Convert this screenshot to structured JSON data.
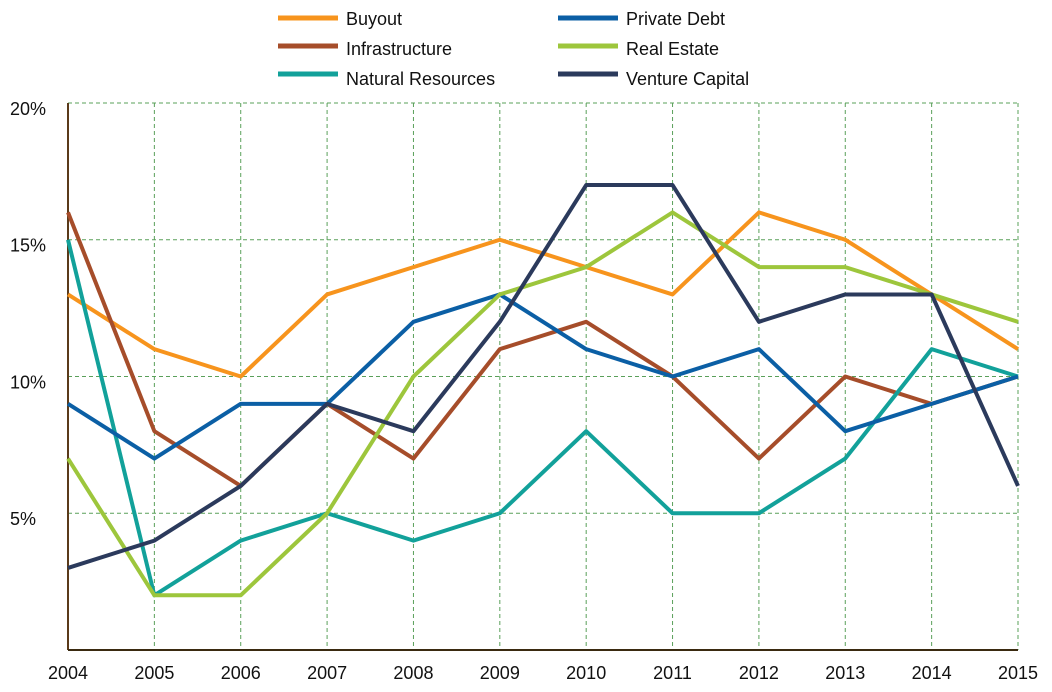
{
  "chart_data": {
    "type": "line",
    "x": [
      2004,
      2005,
      2006,
      2007,
      2008,
      2009,
      2010,
      2011,
      2012,
      2013,
      2014,
      2015
    ],
    "xlim": [
      2004,
      2015
    ],
    "xticks": [
      2004,
      2005,
      2006,
      2007,
      2008,
      2009,
      2010,
      2011,
      2012,
      2013,
      2014,
      2015
    ],
    "ylim": [
      0,
      20
    ],
    "yticks": [
      {
        "value": 5,
        "label": "5%"
      },
      {
        "value": 10,
        "label": "10%"
      },
      {
        "value": 15,
        "label": "15%"
      },
      {
        "value": 20,
        "label": "20%"
      }
    ],
    "grid": true,
    "legend": "top",
    "series": [
      {
        "name": "Buyout",
        "color": "#f7941d",
        "values": [
          13,
          11,
          10,
          13,
          14,
          15,
          14,
          13,
          16,
          15,
          13,
          11
        ]
      },
      {
        "name": "Infrastructure",
        "color": "#a64d2a",
        "values": [
          16,
          8,
          6,
          9,
          7,
          11,
          12,
          10,
          7,
          10,
          9,
          10
        ]
      },
      {
        "name": "Natural Resources",
        "color": "#12a19a",
        "values": [
          15,
          2,
          4,
          5,
          4,
          5,
          8,
          5,
          5,
          7,
          11,
          10
        ]
      },
      {
        "name": "Private Debt",
        "color": "#0b5fa5",
        "values": [
          9,
          7,
          9,
          9,
          12,
          13,
          11,
          10,
          11,
          8,
          9,
          10
        ]
      },
      {
        "name": "Real Estate",
        "color": "#9dc63c",
        "values": [
          7,
          2,
          2,
          5,
          10,
          13,
          14,
          16,
          14,
          14,
          13,
          12
        ]
      },
      {
        "name": "Venture Capital",
        "color": "#2b3a5c",
        "values": [
          3,
          4,
          6,
          9,
          8,
          12,
          17,
          17,
          12,
          13,
          13,
          6
        ]
      }
    ]
  }
}
